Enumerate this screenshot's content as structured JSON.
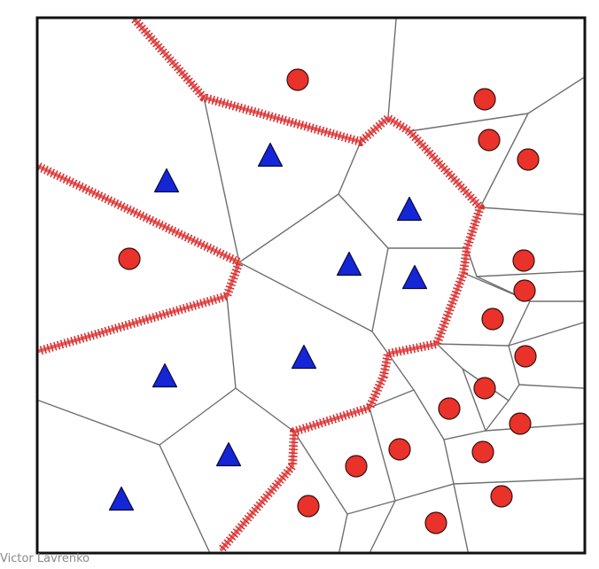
{
  "figure": {
    "credit": "Victor Lavrenko"
  },
  "chart_data": {
    "type": "scatter",
    "title": "",
    "grid": false,
    "series": [
      {
        "class": "circle",
        "color": "#e8322a",
        "points": [
          [
            336,
            90
          ],
          [
            547,
            112
          ],
          [
            552,
            158
          ],
          [
            596,
            180
          ],
          [
            146,
            292
          ],
          [
            591,
            294
          ],
          [
            592,
            328
          ],
          [
            556,
            360
          ],
          [
            593,
            402
          ],
          [
            547,
            438
          ],
          [
            507,
            461
          ],
          [
            587,
            478
          ],
          [
            451,
            507
          ],
          [
            545,
            510
          ],
          [
            402,
            526
          ],
          [
            566,
            560
          ],
          [
            348,
            571
          ],
          [
            492,
            590
          ]
        ]
      },
      {
        "class": "triangle",
        "color": "#1426d6",
        "points": [
          [
            305,
            175
          ],
          [
            188,
            204
          ],
          [
            462,
            236
          ],
          [
            394,
            298
          ],
          [
            468,
            313
          ],
          [
            343,
            403
          ],
          [
            186,
            424
          ],
          [
            258,
            513
          ],
          [
            137,
            563
          ]
        ]
      }
    ],
    "decision_boundary": {
      "color": "#e8585a",
      "segments": [
        [
          [
            152,
            22
          ],
          [
            230,
            110
          ],
          [
            407,
            160
          ],
          [
            438,
            133
          ],
          [
            462,
            148
          ],
          [
            542,
            234
          ],
          [
            527,
            280
          ],
          [
            523,
            308
          ],
          [
            493,
            388
          ],
          [
            438,
            399
          ],
          [
            433,
            424
          ],
          [
            417,
            460
          ],
          [
            332,
            487
          ],
          [
            330,
            526
          ],
          [
            250,
            620
          ]
        ],
        [
          [
            44,
            188
          ],
          [
            270,
            296
          ],
          [
            256,
            334
          ],
          [
            44,
            396
          ]
        ]
      ]
    },
    "cell_edges": [
      [
        [
          230,
          110
        ],
        [
          270,
          296
        ],
        [
          382,
          219
        ],
        [
          407,
          160
        ]
      ],
      [
        [
          447,
          22
        ],
        [
          438,
          133
        ]
      ],
      [
        [
          462,
          148
        ],
        [
          596,
          128
        ],
        [
          658,
          88
        ]
      ],
      [
        [
          596,
          128
        ],
        [
          542,
          234
        ]
      ],
      [
        [
          542,
          234
        ],
        [
          658,
          242
        ]
      ],
      [
        [
          382,
          219
        ],
        [
          438,
          280
        ],
        [
          527,
          280
        ]
      ],
      [
        [
          438,
          280
        ],
        [
          420,
          374
        ],
        [
          438,
          399
        ]
      ],
      [
        [
          270,
          296
        ],
        [
          420,
          374
        ]
      ],
      [
        [
          527,
          280
        ],
        [
          538,
          312
        ],
        [
          658,
          306
        ]
      ],
      [
        [
          523,
          308
        ],
        [
          598,
          340
        ]
      ],
      [
        [
          538,
          312
        ],
        [
          598,
          340
        ],
        [
          658,
          340
        ]
      ],
      [
        [
          598,
          340
        ],
        [
          574,
          390
        ],
        [
          493,
          388
        ]
      ],
      [
        [
          574,
          390
        ],
        [
          658,
          364
        ]
      ],
      [
        [
          574,
          390
        ],
        [
          586,
          434
        ],
        [
          658,
          438
        ]
      ],
      [
        [
          586,
          434
        ],
        [
          574,
          452
        ],
        [
          522,
          416
        ]
      ],
      [
        [
          493,
          388
        ],
        [
          522,
          416
        ],
        [
          548,
          486
        ],
        [
          574,
          452
        ]
      ],
      [
        [
          548,
          486
        ],
        [
          658,
          478
        ]
      ],
      [
        [
          548,
          486
        ],
        [
          501,
          496
        ],
        [
          467,
          440
        ],
        [
          438,
          399
        ]
      ],
      [
        [
          467,
          440
        ],
        [
          417,
          460
        ]
      ],
      [
        [
          501,
          496
        ],
        [
          512,
          546
        ],
        [
          658,
          540
        ]
      ],
      [
        [
          512,
          546
        ],
        [
          528,
          622
        ]
      ],
      [
        [
          512,
          546
        ],
        [
          446,
          565
        ],
        [
          417,
          460
        ]
      ],
      [
        [
          446,
          565
        ],
        [
          418,
          622
        ]
      ],
      [
        [
          446,
          565
        ],
        [
          392,
          580
        ],
        [
          332,
          487
        ]
      ],
      [
        [
          392,
          580
        ],
        [
          383,
          622
        ]
      ],
      [
        [
          256,
          334
        ],
        [
          266,
          438
        ],
        [
          332,
          487
        ]
      ],
      [
        [
          266,
          438
        ],
        [
          180,
          502
        ],
        [
          44,
          452
        ]
      ],
      [
        [
          180,
          502
        ],
        [
          236,
          622
        ]
      ]
    ]
  }
}
